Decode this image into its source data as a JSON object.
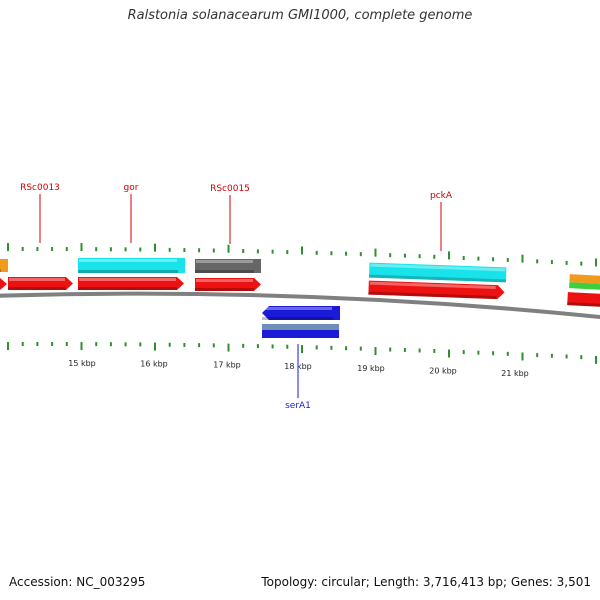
{
  "title": "Ralstonia solanacearum GMI1000, complete genome",
  "footer": {
    "accession": "Accession: NC_003295",
    "stats": "Topology: circular; Length: 3,716,413 bp; Genes: 3,501"
  },
  "colors": {
    "backbone": "#808080",
    "tick": "#2f8f2f",
    "cds_red": "#ee1111",
    "cyan": "#19e3ea",
    "gray": "#666666",
    "blue": "#1a1ad8",
    "label_red": "#d40000",
    "label_blue": "#1a1ad8"
  },
  "scale_labels": [
    "15 kbp",
    "16 kbp",
    "17 kbp",
    "18 kbp",
    "19 kbp",
    "20 kbp",
    "21 kbp"
  ],
  "gene_labels": [
    {
      "text": "RSc0013",
      "color": "label_red"
    },
    {
      "text": "gor",
      "color": "label_red"
    },
    {
      "text": "RSc0015",
      "color": "label_red"
    },
    {
      "text": "pckA",
      "color": "label_red"
    },
    {
      "text": "serA1",
      "color": "label_blue"
    }
  ]
}
